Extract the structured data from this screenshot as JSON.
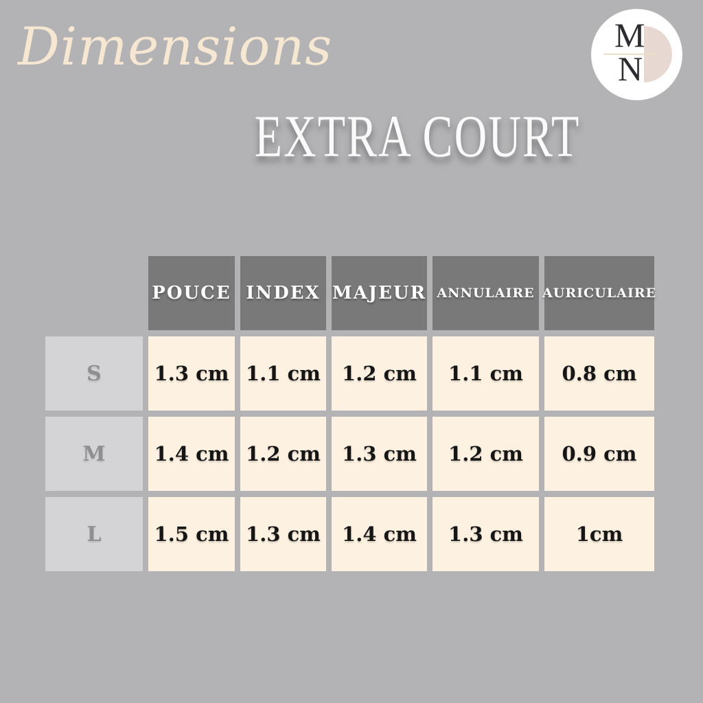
{
  "page": {
    "script_title": "Dimensions",
    "main_title": "EXTRA COURT"
  },
  "logo": {
    "letter_top": "M",
    "letter_bottom": "N"
  },
  "table": {
    "column_headers": [
      "POUCE",
      "INDEX",
      "MAJEUR",
      "ANNULAIRE",
      "AURICULAIRE"
    ],
    "rows": [
      {
        "label": "S",
        "values": [
          "1.3 cm",
          "1.1 cm",
          "1.2 cm",
          "1.1 cm",
          "0.8 cm"
        ]
      },
      {
        "label": "M",
        "values": [
          "1.4 cm",
          "1.2 cm",
          "1.3 cm",
          "1.2 cm",
          "0.9 cm"
        ]
      },
      {
        "label": "L",
        "values": [
          "1.5 cm",
          "1.3 cm",
          "1.4 cm",
          "1.3 cm",
          "1cm"
        ]
      }
    ]
  },
  "colors": {
    "background": "#b3b2b4",
    "header_cell": "#7a797a",
    "row_label_cell": "#d4d3d5",
    "data_cell": "#fdf1e1",
    "accent_cream": "#f6e7d2",
    "logo_semicircle": "#e7d9d1",
    "logo_divider_line": "#ecdfc6",
    "logo_letters": "#2b2b30"
  },
  "chart_data": {
    "type": "table",
    "title": "EXTRA COURT",
    "subtitle_script": "Dimensions",
    "columns": [
      "POUCE",
      "INDEX",
      "MAJEUR",
      "ANNULAIRE",
      "AURICULAIRE"
    ],
    "row_labels": [
      "S",
      "M",
      "L"
    ],
    "unit": "cm",
    "values_cm": [
      [
        1.3,
        1.1,
        1.2,
        1.1,
        0.8
      ],
      [
        1.4,
        1.2,
        1.3,
        1.2,
        0.9
      ],
      [
        1.5,
        1.3,
        1.4,
        1.3,
        1.0
      ]
    ]
  }
}
